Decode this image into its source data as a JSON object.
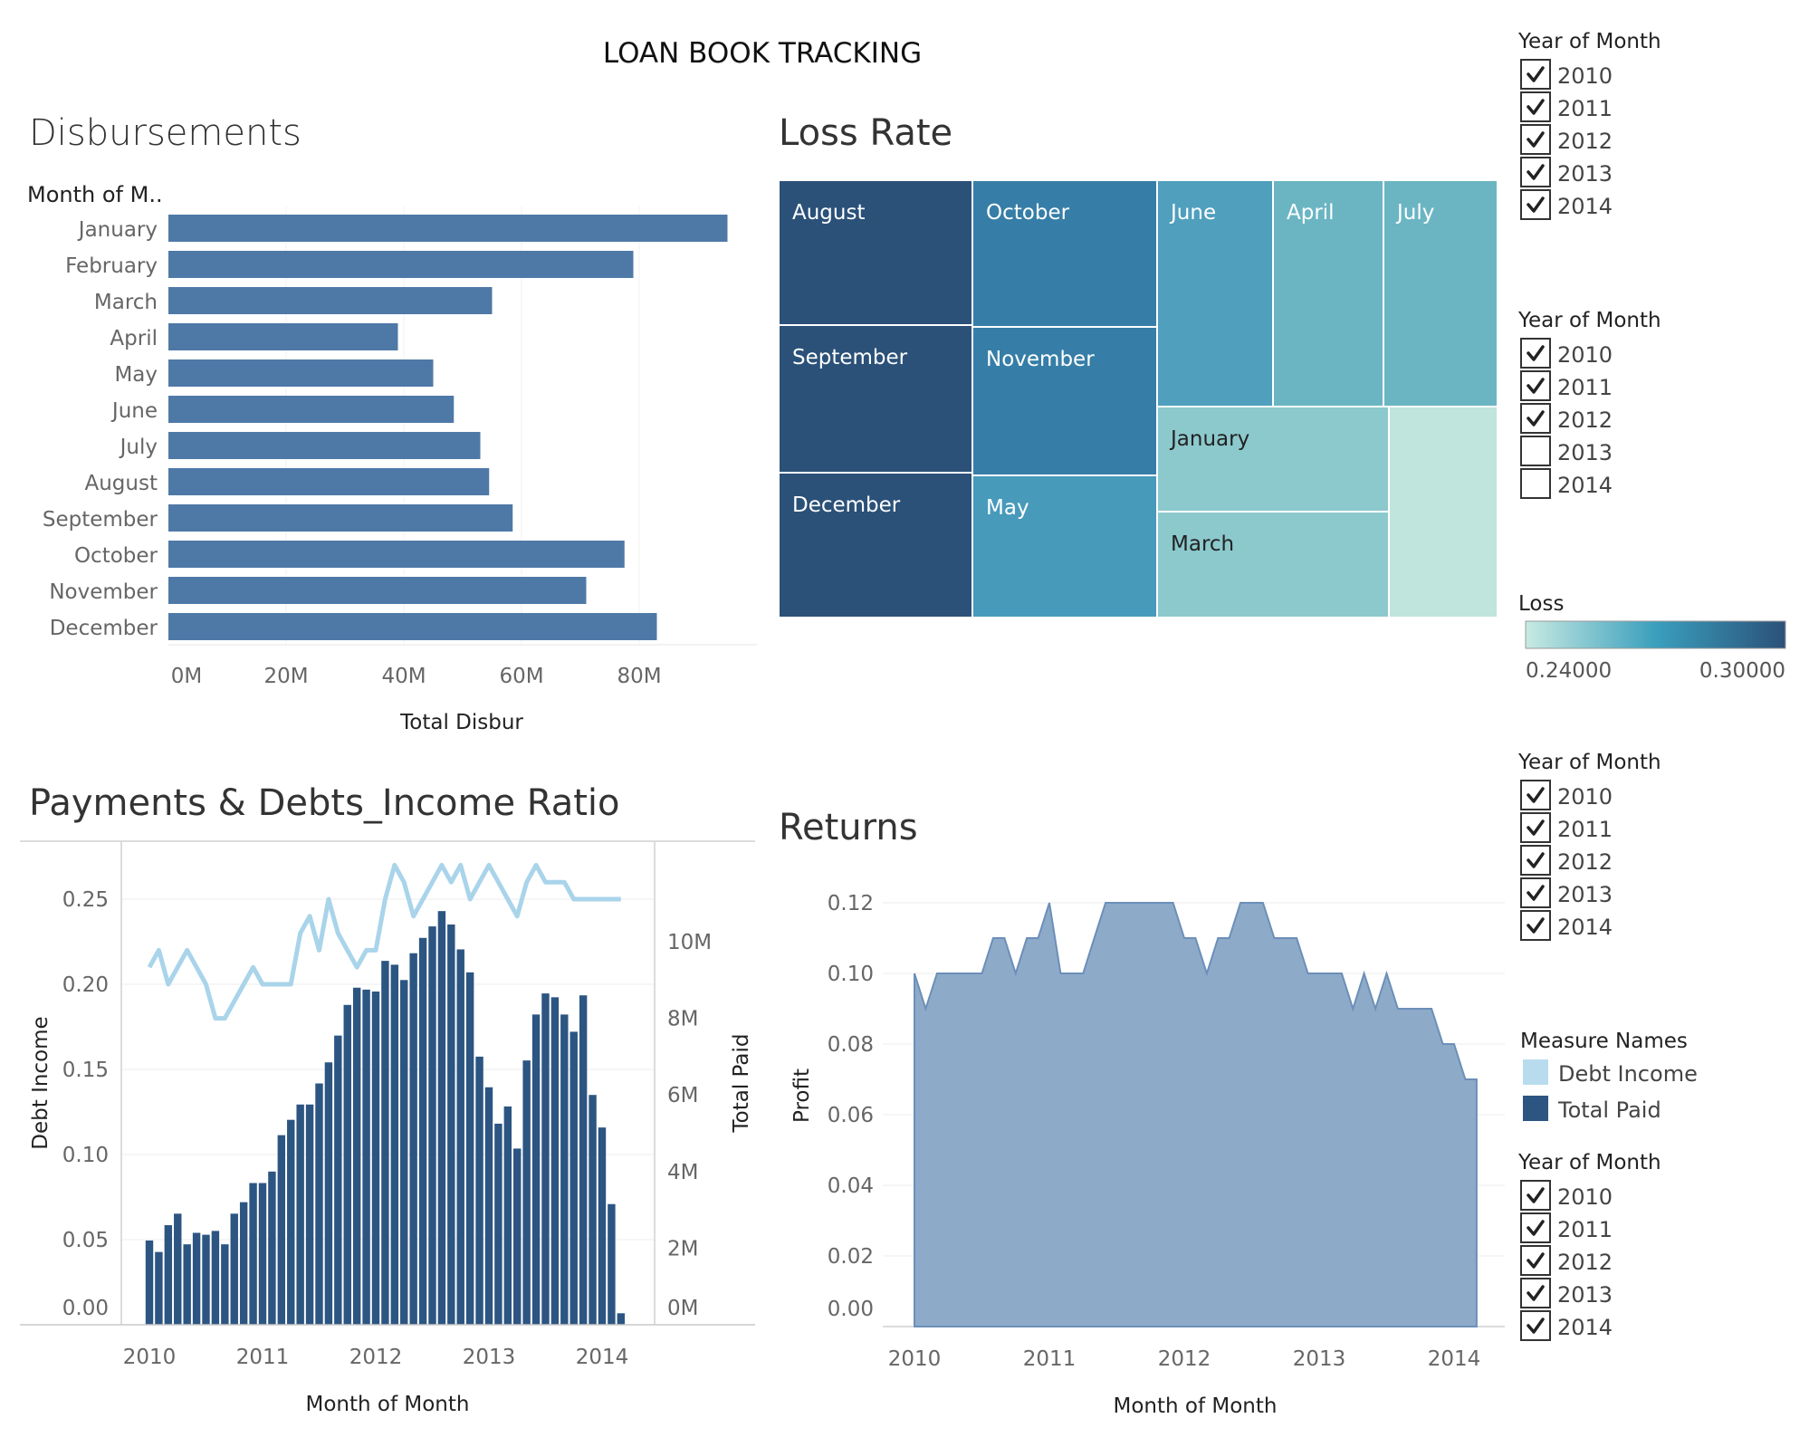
{
  "dashboard_title": "LOAN BOOK TRACKING",
  "colors": {
    "bar_blue": "#4e79a7",
    "navy": "#2c5582",
    "light_blue": "#a9d4ea",
    "area_fill": "#8eaac9",
    "area_stroke": "#6b8fb8",
    "loss_low": "#bfe5dc",
    "loss_high": "#2b5179"
  },
  "filters": [
    {
      "title": "Year of Month",
      "options": [
        {
          "label": "2010",
          "checked": true
        },
        {
          "label": "2011",
          "checked": true
        },
        {
          "label": "2012",
          "checked": true
        },
        {
          "label": "2013",
          "checked": true
        },
        {
          "label": "2014",
          "checked": true
        }
      ]
    },
    {
      "title": "Year of Month",
      "options": [
        {
          "label": "2010",
          "checked": true
        },
        {
          "label": "2011",
          "checked": true
        },
        {
          "label": "2012",
          "checked": true
        },
        {
          "label": "2013",
          "checked": false
        },
        {
          "label": "2014",
          "checked": false
        }
      ]
    },
    {
      "title": "Year of Month",
      "options": [
        {
          "label": "2010",
          "checked": true
        },
        {
          "label": "2011",
          "checked": true
        },
        {
          "label": "2012",
          "checked": true
        },
        {
          "label": "2013",
          "checked": true
        },
        {
          "label": "2014",
          "checked": true
        }
      ]
    },
    {
      "title": "Year of Month",
      "options": [
        {
          "label": "2010",
          "checked": true
        },
        {
          "label": "2011",
          "checked": true
        },
        {
          "label": "2012",
          "checked": true
        },
        {
          "label": "2013",
          "checked": true
        },
        {
          "label": "2014",
          "checked": true
        }
      ]
    }
  ],
  "loss_legend": {
    "title": "Loss",
    "min_label": "0.24000",
    "max_label": "0.30000"
  },
  "measure_legend": {
    "title": "Measure Names",
    "items": [
      {
        "label": "Debt Income",
        "color": "#a9d4ea"
      },
      {
        "label": "Total Paid",
        "color": "#2c5582"
      }
    ]
  },
  "chart_data": [
    {
      "type": "bar",
      "title": "Disbursements",
      "row_header": "Month of M..",
      "xlabel": "Total Disbur",
      "orientation": "horizontal",
      "categories": [
        "January",
        "February",
        "March",
        "April",
        "May",
        "June",
        "July",
        "August",
        "September",
        "October",
        "November",
        "December"
      ],
      "values": [
        95,
        79,
        55,
        39,
        45,
        48.5,
        53,
        54.5,
        58.5,
        77.5,
        71,
        83
      ],
      "unit": "M",
      "xlim": [
        0,
        100
      ],
      "xticks": [
        {
          "v": 0,
          "label": "0M"
        },
        {
          "v": 20,
          "label": "20M"
        },
        {
          "v": 40,
          "label": "40M"
        },
        {
          "v": 60,
          "label": "60M"
        },
        {
          "v": 80,
          "label": "80M"
        }
      ],
      "grid": true
    },
    {
      "type": "heatmap",
      "subtype": "treemap",
      "title": "Loss Rate",
      "measure": "Loss",
      "cells": [
        {
          "label": "August",
          "value": 0.3
        },
        {
          "label": "September",
          "value": 0.3
        },
        {
          "label": "December",
          "value": 0.3
        },
        {
          "label": "October",
          "value": 0.287
        },
        {
          "label": "November",
          "value": 0.287
        },
        {
          "label": "May",
          "value": 0.278
        },
        {
          "label": "June",
          "value": 0.276
        },
        {
          "label": "April",
          "value": 0.268
        },
        {
          "label": "July",
          "value": 0.268
        },
        {
          "label": "January",
          "value": 0.257
        },
        {
          "label": "March",
          "value": 0.257
        },
        {
          "label": "",
          "value": 0.24
        }
      ],
      "color_range": [
        0.24,
        0.3
      ]
    },
    {
      "type": "bar",
      "combo": "bar+line",
      "title": "Payments & Debts_Income Ratio",
      "xlabel": "Month of Month",
      "ylabel_left": "Debt Income",
      "ylabel_right": "Total Paid",
      "x_start": 2010.0,
      "x_step": 0.08333,
      "xlim": [
        2009.75,
        2014.5
      ],
      "xticks": [
        "2010",
        "2011",
        "2012",
        "2013",
        "2014"
      ],
      "left_ylim": [
        0,
        0.275
      ],
      "left_yticks": [
        {
          "v": 0,
          "label": "0.00"
        },
        {
          "v": 0.05,
          "label": "0.05"
        },
        {
          "v": 0.1,
          "label": "0.10"
        },
        {
          "v": 0.15,
          "label": "0.15"
        },
        {
          "v": 0.2,
          "label": "0.20"
        },
        {
          "v": 0.25,
          "label": "0.25"
        }
      ],
      "right_ylim": [
        0,
        11
      ],
      "right_yticks": [
        {
          "v": 0,
          "label": "0M"
        },
        {
          "v": 2,
          "label": "2M"
        },
        {
          "v": 4,
          "label": "4M"
        },
        {
          "v": 6,
          "label": "6M"
        },
        {
          "v": 8,
          "label": "8M"
        },
        {
          "v": 10,
          "label": "10M"
        }
      ],
      "series": [
        {
          "name": "Total Paid",
          "type": "bar",
          "unit": "M",
          "values": [
            2.2,
            1.9,
            2.6,
            2.9,
            2.1,
            2.4,
            2.35,
            2.45,
            2.1,
            2.9,
            3.2,
            3.7,
            3.7,
            4.0,
            4.95,
            5.35,
            5.75,
            5.75,
            6.3,
            6.85,
            7.55,
            8.35,
            8.8,
            8.75,
            8.7,
            9.5,
            9.4,
            9.0,
            9.7,
            10.1,
            10.4,
            10.8,
            10.45,
            9.8,
            9.2,
            7.0,
            6.2,
            5.25,
            5.7,
            4.6,
            6.9,
            8.1,
            8.65,
            8.55,
            8.1,
            7.65,
            8.6,
            6.0,
            5.15,
            3.15,
            0.3
          ]
        },
        {
          "name": "Debt Income",
          "type": "line",
          "values": [
            0.21,
            0.22,
            0.2,
            0.21,
            0.22,
            0.21,
            0.2,
            0.18,
            0.18,
            0.19,
            0.2,
            0.21,
            0.2,
            0.2,
            0.2,
            0.2,
            0.23,
            0.24,
            0.22,
            0.25,
            0.23,
            0.22,
            0.21,
            0.22,
            0.22,
            0.25,
            0.27,
            0.26,
            0.24,
            0.25,
            0.26,
            0.27,
            0.26,
            0.27,
            0.25,
            0.26,
            0.27,
            0.26,
            0.25,
            0.24,
            0.26,
            0.27,
            0.26,
            0.26,
            0.26,
            0.25,
            0.25,
            0.25,
            0.25,
            0.25,
            0.25
          ]
        }
      ],
      "grid": true
    },
    {
      "type": "area",
      "title": "Returns",
      "xlabel": "Month of Month",
      "ylabel": "Profit",
      "xlim": [
        2009.75,
        2014.3
      ],
      "xticks": [
        "2010",
        "2011",
        "2012",
        "2013",
        "2014"
      ],
      "ylim": [
        0,
        0.12
      ],
      "yticks": [
        "0.00",
        "0.02",
        "0.04",
        "0.06",
        "0.08",
        "0.10",
        "0.12"
      ],
      "x": [
        2010.0,
        2010.083,
        2010.167,
        2010.25,
        2010.333,
        2010.417,
        2010.5,
        2010.583,
        2010.667,
        2010.75,
        2010.833,
        2010.917,
        2011.0,
        2011.083,
        2011.167,
        2011.25,
        2011.333,
        2011.417,
        2011.5,
        2011.583,
        2011.667,
        2011.75,
        2011.833,
        2011.917,
        2012.0,
        2012.083,
        2012.167,
        2012.25,
        2012.333,
        2012.417,
        2012.5,
        2012.583,
        2012.667,
        2012.75,
        2012.833,
        2012.917,
        2013.0,
        2013.083,
        2013.167,
        2013.25,
        2013.333,
        2013.417,
        2013.5,
        2013.583,
        2013.667,
        2013.75,
        2013.833,
        2013.917,
        2014.0,
        2014.083,
        2014.167
      ],
      "values": [
        0.1,
        0.09,
        0.1,
        0.1,
        0.1,
        0.1,
        0.1,
        0.11,
        0.11,
        0.1,
        0.11,
        0.11,
        0.12,
        0.1,
        0.1,
        0.1,
        0.11,
        0.12,
        0.12,
        0.12,
        0.12,
        0.12,
        0.12,
        0.12,
        0.11,
        0.11,
        0.1,
        0.11,
        0.11,
        0.12,
        0.12,
        0.12,
        0.11,
        0.11,
        0.11,
        0.1,
        0.1,
        0.1,
        0.1,
        0.09,
        0.1,
        0.09,
        0.1,
        0.09,
        0.09,
        0.09,
        0.09,
        0.08,
        0.08,
        0.07,
        0.07
      ],
      "grid": true
    }
  ]
}
